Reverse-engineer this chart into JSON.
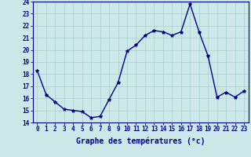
{
  "hours": [
    0,
    1,
    2,
    3,
    4,
    5,
    6,
    7,
    8,
    9,
    10,
    11,
    12,
    13,
    14,
    15,
    16,
    17,
    18,
    19,
    20,
    21,
    22,
    23
  ],
  "temps": [
    18.3,
    16.3,
    15.7,
    15.1,
    15.0,
    14.9,
    14.4,
    14.5,
    15.9,
    17.3,
    19.9,
    20.4,
    21.2,
    21.6,
    21.5,
    21.2,
    21.5,
    23.8,
    21.5,
    19.5,
    16.1,
    16.5,
    16.1,
    16.6
  ],
  "line_color": "#00008b",
  "marker": "*",
  "marker_size": 3,
  "bg_color": "#cce8e8",
  "grid_color": "#aacfcf",
  "xlabel": "Graphe des températures (°c)",
  "ylim": [
    14,
    24
  ],
  "xlim_min": -0.5,
  "xlim_max": 23.5,
  "yticks": [
    14,
    15,
    16,
    17,
    18,
    19,
    20,
    21,
    22,
    23,
    24
  ],
  "xticks": [
    0,
    1,
    2,
    3,
    4,
    5,
    6,
    7,
    8,
    9,
    10,
    11,
    12,
    13,
    14,
    15,
    16,
    17,
    18,
    19,
    20,
    21,
    22,
    23
  ],
  "tick_fontsize": 5.5,
  "xlabel_fontsize": 7,
  "xlabel_color": "#00008b",
  "axis_color": "#00008b",
  "tick_color": "#00008b",
  "linewidth": 1.0
}
